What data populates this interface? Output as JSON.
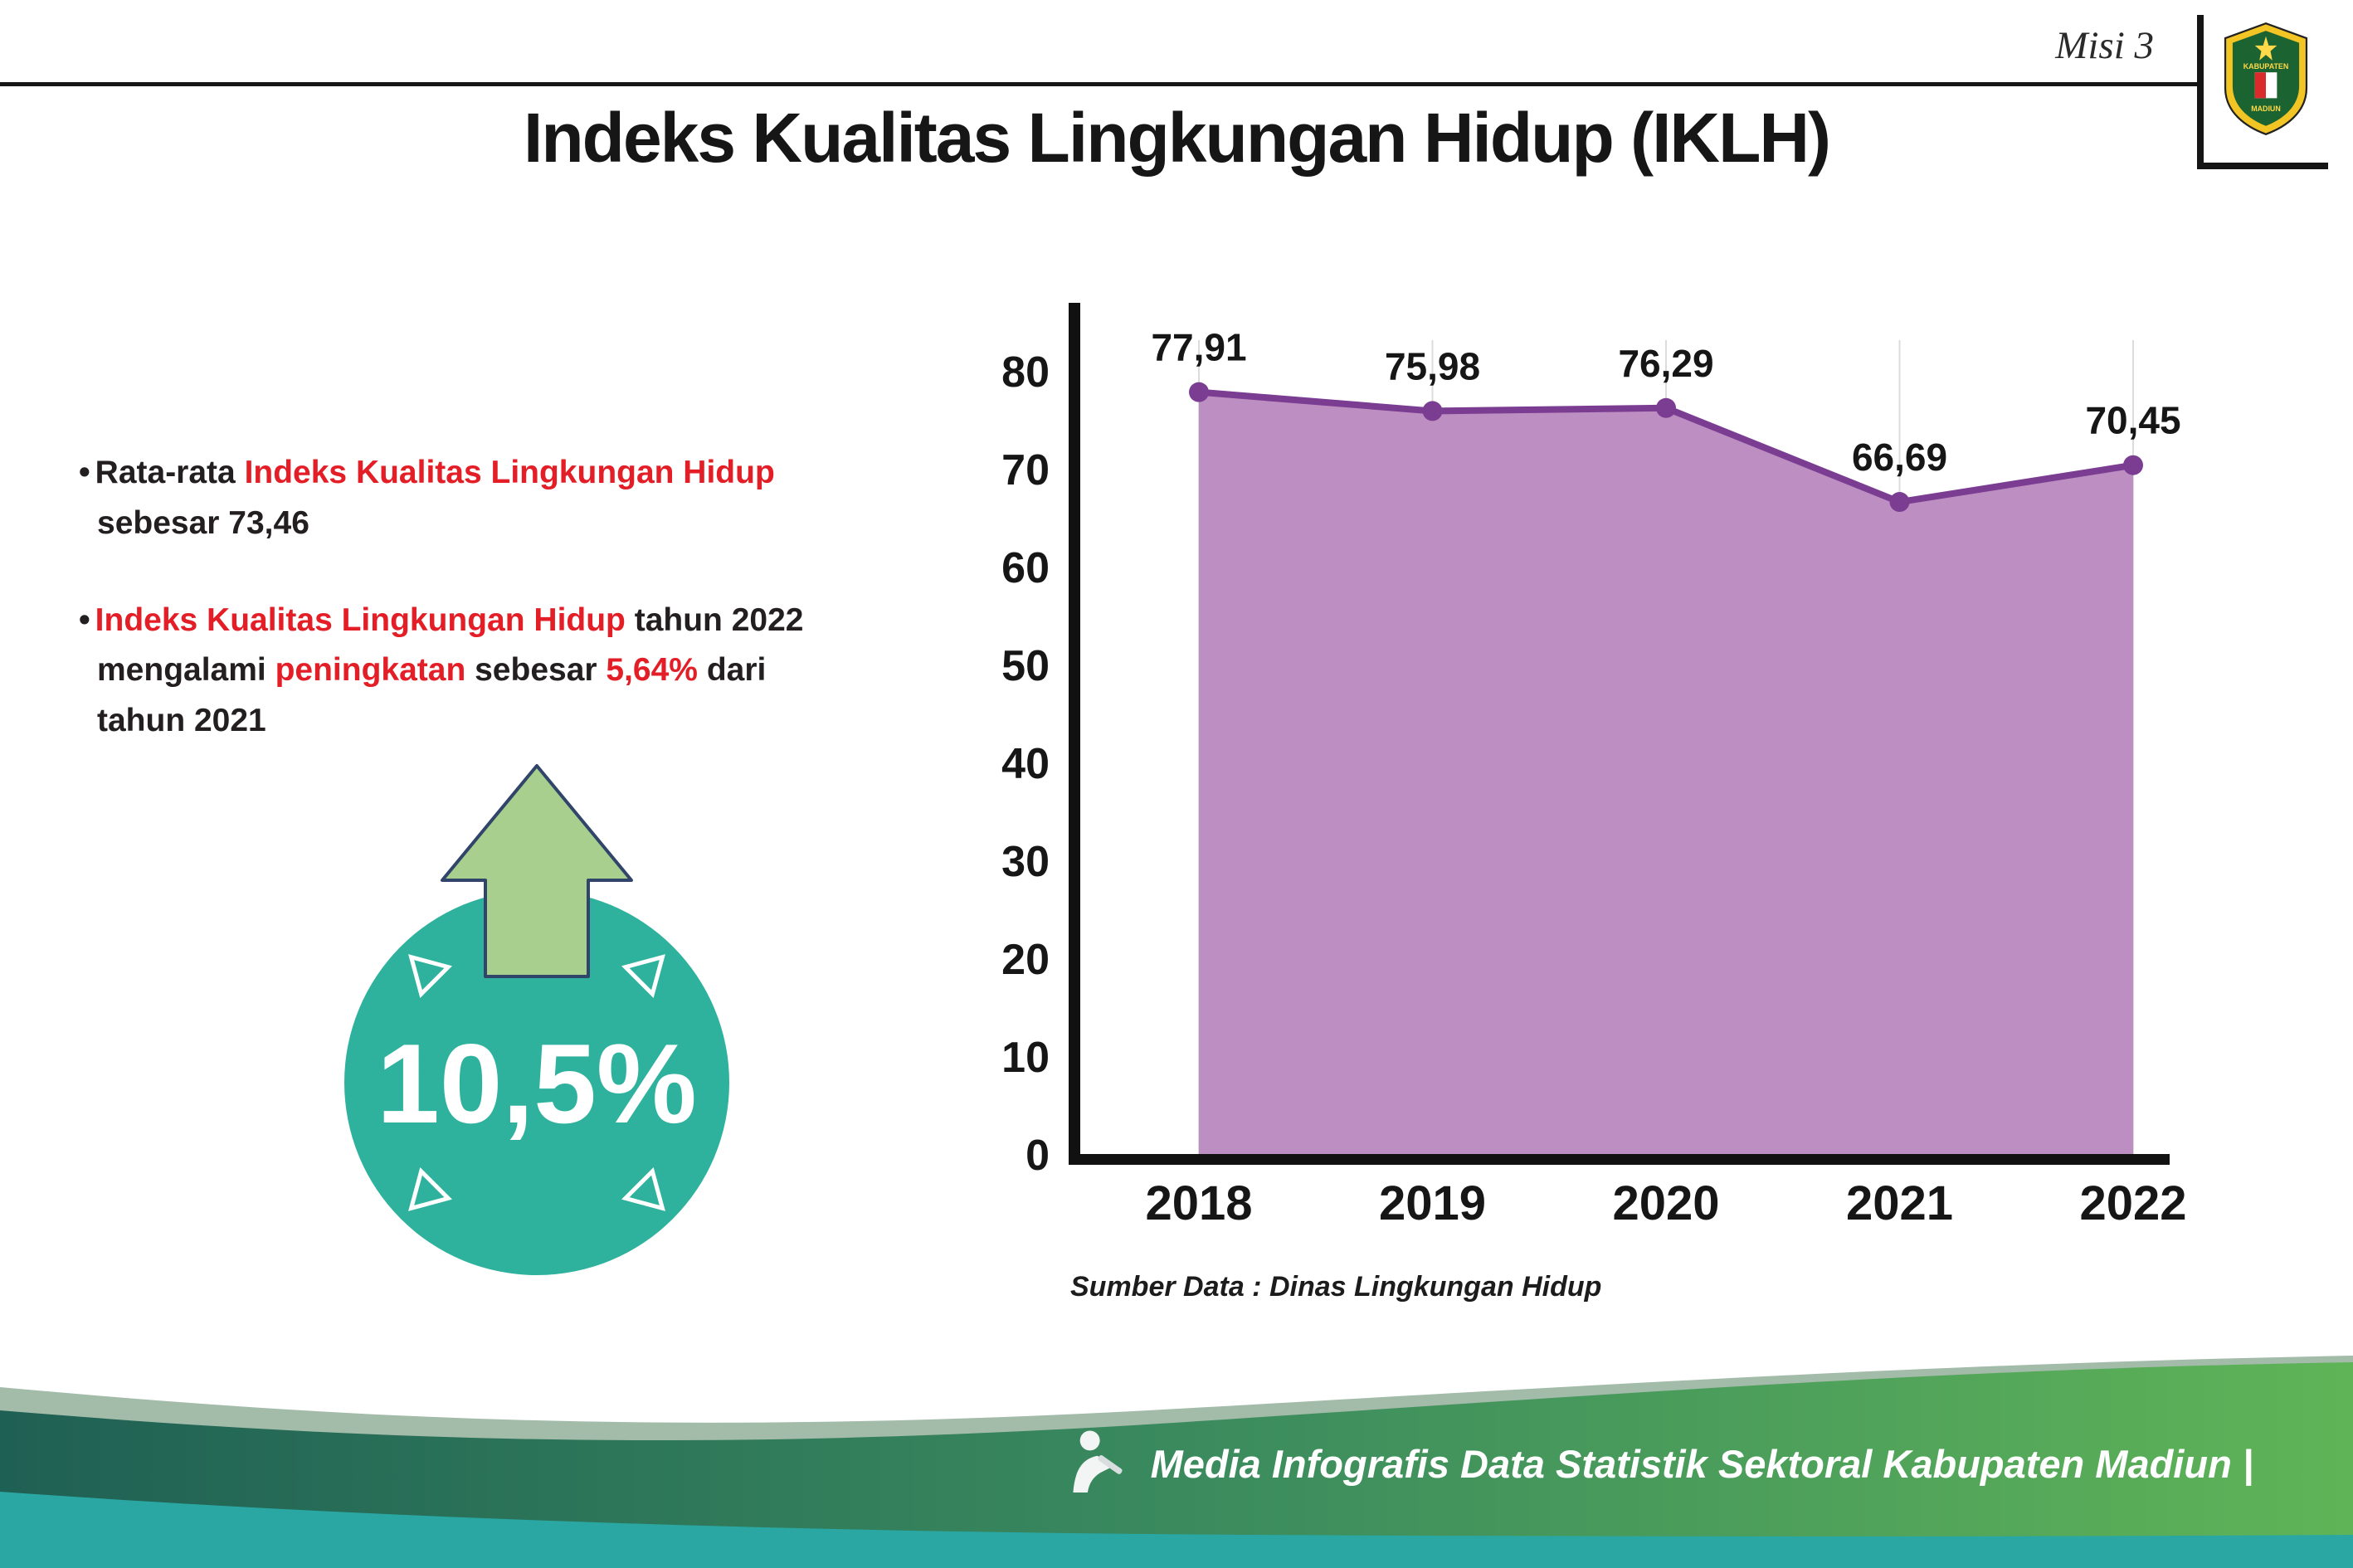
{
  "header": {
    "misi_label": "Misi 3",
    "title": "Indeks Kualitas Lingkungan Hidup (IKLH)"
  },
  "logo": {
    "name": "Kabupaten Madiun",
    "text_top": "KABUPATEN",
    "text_bottom": "MADIUN"
  },
  "bullets": {
    "marker": "•",
    "b1l1a": "Rata-rata ",
    "b1l1b": "Indeks Kualitas Lingkungan Hidup",
    "b1l2": "sebesar 73,46",
    "b2l1a": "Indeks Kualitas Lingkungan Hidup",
    "b2l1b": " tahun 2022",
    "b2l2a": "mengalami ",
    "b2l2b": "peningkatan",
    "b2l2c": " sebesar ",
    "b2l2d": "5,64%",
    "b2l2e": " dari",
    "b2l3": "tahun 2021"
  },
  "badge": {
    "value": "10,5%",
    "circle_color": "#2fb29d",
    "arrow_color": "#a8cf8e"
  },
  "chart_data": {
    "type": "area",
    "title": "",
    "categories": [
      "2018",
      "2019",
      "2020",
      "2021",
      "2022"
    ],
    "values": [
      77.91,
      75.98,
      76.29,
      66.69,
      70.45
    ],
    "value_labels": [
      "77,91",
      "75,98",
      "76,29",
      "66,69",
      "70,45"
    ],
    "ylim": [
      0,
      80
    ],
    "ytick_step": 10,
    "grid": "vertical-light",
    "legend": "none",
    "area_color": "#bd8ec1",
    "line_color": "#7b3d92",
    "source": "Sumber Data : Dinas Lingkungan Hidup"
  },
  "footer": {
    "text": "Media Infografis Data Statistik Sektoral Kabupaten Madiun |",
    "grad_left": "#1f6054",
    "grad_mid": "#3a8a5e",
    "grad_right": "#5fb457",
    "strip_color": "#2aa7a3"
  }
}
